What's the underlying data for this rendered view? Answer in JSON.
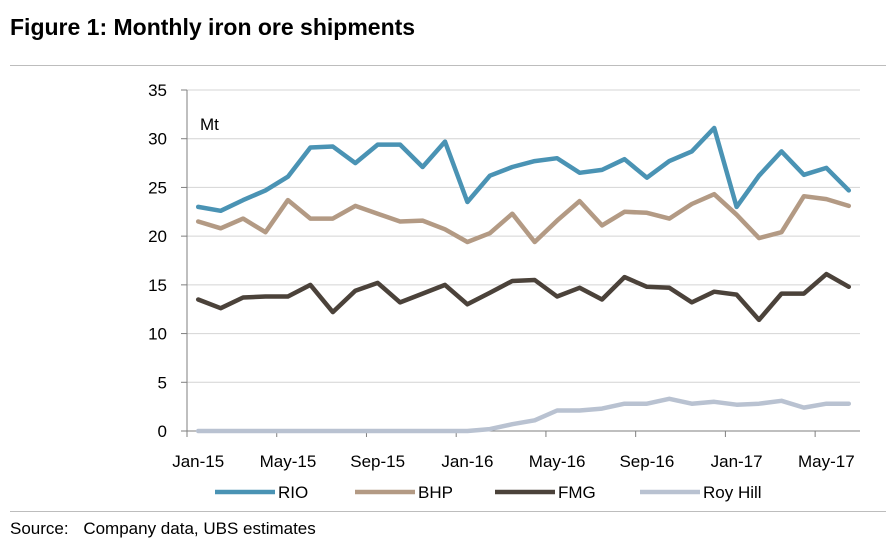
{
  "figure": {
    "title": "Figure 1: Monthly iron ore shipments",
    "source_label": "Source:",
    "source_text": "Company data, UBS estimates"
  },
  "chart_data": {
    "type": "line",
    "title": "Figure 1: Monthly iron ore shipments",
    "ylabel": "Mt",
    "xlabel": "",
    "ylim": [
      0,
      35
    ],
    "yticks": [
      0,
      5,
      10,
      15,
      20,
      25,
      30,
      35
    ],
    "grid": "horizontal",
    "legend": "bottom",
    "x": [
      "Jan-15",
      "Feb-15",
      "Mar-15",
      "Apr-15",
      "May-15",
      "Jun-15",
      "Jul-15",
      "Aug-15",
      "Sep-15",
      "Oct-15",
      "Nov-15",
      "Dec-15",
      "Jan-16",
      "Feb-16",
      "Mar-16",
      "Apr-16",
      "May-16",
      "Jun-16",
      "Jul-16",
      "Aug-16",
      "Sep-16",
      "Oct-16",
      "Nov-16",
      "Dec-16",
      "Jan-17",
      "Feb-17",
      "Mar-17",
      "Apr-17",
      "May-17",
      "Jun-17"
    ],
    "xtick_labels": [
      "Jan-15",
      "May-15",
      "Sep-15",
      "Jan-16",
      "May-16",
      "Sep-16",
      "Jan-17",
      "May-17"
    ],
    "series": [
      {
        "name": "RIO",
        "color": "#4a93b4",
        "values": [
          23.0,
          22.6,
          23.7,
          24.7,
          26.1,
          29.1,
          29.2,
          27.5,
          29.4,
          29.4,
          27.1,
          29.7,
          23.5,
          26.2,
          27.1,
          27.7,
          28.0,
          26.5,
          26.8,
          27.9,
          26.0,
          27.7,
          28.7,
          31.1,
          23.0,
          26.2,
          28.7,
          26.3,
          27.0,
          24.7
        ]
      },
      {
        "name": "BHP",
        "color": "#b39a84",
        "values": [
          21.5,
          20.8,
          21.8,
          20.4,
          23.7,
          21.8,
          21.8,
          23.1,
          22.3,
          21.5,
          21.6,
          20.7,
          19.4,
          20.3,
          22.3,
          19.4,
          21.6,
          23.6,
          21.1,
          22.5,
          22.4,
          21.8,
          23.3,
          24.3,
          22.2,
          19.8,
          20.4,
          24.1,
          23.8,
          23.1
        ]
      },
      {
        "name": "FMG",
        "color": "#4b423a",
        "values": [
          13.5,
          12.6,
          13.7,
          13.8,
          13.8,
          15.0,
          12.2,
          14.4,
          15.2,
          13.2,
          14.1,
          15.0,
          13.0,
          14.2,
          15.4,
          15.5,
          13.8,
          14.7,
          13.5,
          15.8,
          14.8,
          14.7,
          13.2,
          14.3,
          14.0,
          11.4,
          14.1,
          14.1,
          16.1,
          14.8
        ]
      },
      {
        "name": "Roy Hill",
        "color": "#b9c2d1",
        "values": [
          0.0,
          0.0,
          0.0,
          0.0,
          0.0,
          0.0,
          0.0,
          0.0,
          0.0,
          0.0,
          0.0,
          0.0,
          0.0,
          0.2,
          0.7,
          1.1,
          2.1,
          2.1,
          2.3,
          2.8,
          2.8,
          3.3,
          2.8,
          3.0,
          2.7,
          2.8,
          3.1,
          2.4,
          2.8,
          2.8
        ]
      }
    ]
  }
}
